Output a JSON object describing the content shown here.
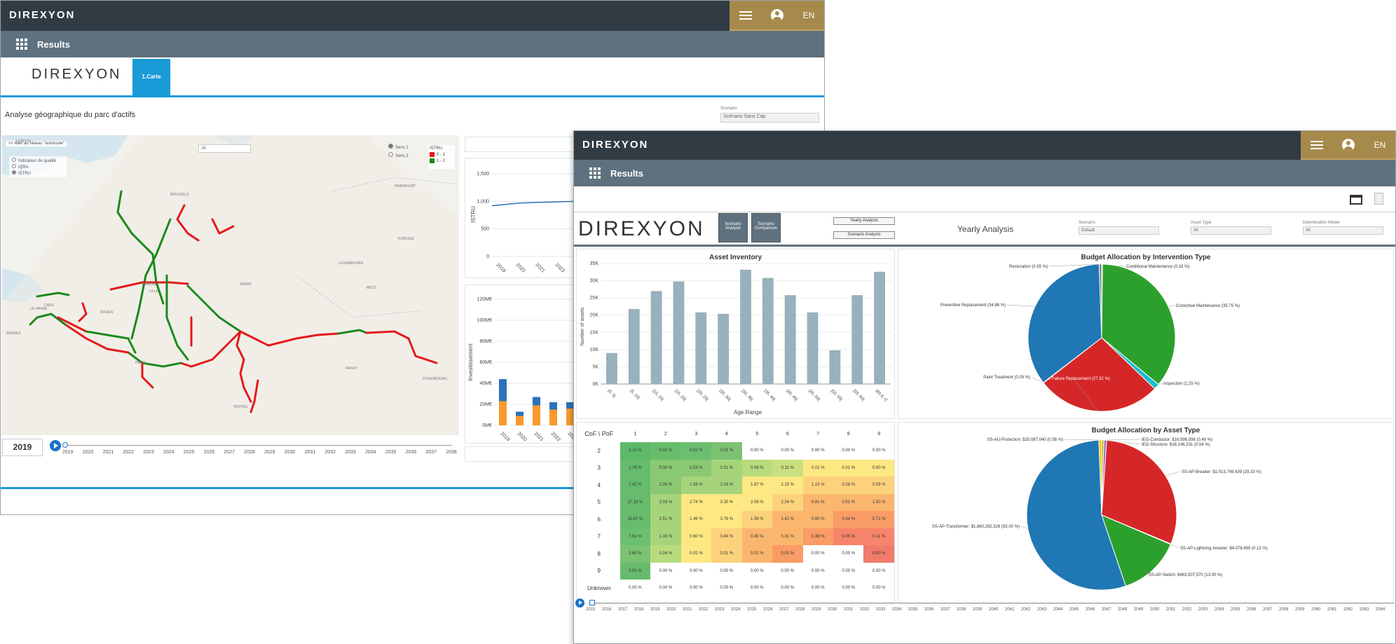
{
  "window1": {
    "brand": "DIREXYON",
    "lang": "EN",
    "results_title": "Results",
    "logo_text": "DIREXYON",
    "tab_carte": "1.Carte",
    "page_heading": "Analyse géographique du parc d'actifs",
    "scenario_label": "Scenario",
    "scenario_value": "Scénario Sans Cap",
    "map_back_link": "<< Aller au niveau \"Autoroute\"",
    "map_filter_value": "All",
    "indicator_options": [
      "Indicateur de qualité",
      "IQRA",
      "ISTRU"
    ],
    "sens_options": [
      "Sens 1",
      "Sens 2"
    ],
    "legend_title": "ISTRU",
    "legend_items": [
      {
        "label": "0 - 1",
        "color": "#e31a1c"
      },
      {
        "label": "1 - 2",
        "color": "#1a8a1a"
      }
    ],
    "cities": [
      "LONDON",
      "BRUSSELS",
      "LILLE",
      "AMIENS",
      "ROUEN",
      "PARIS",
      "REIMS",
      "METZ",
      "NANCY",
      "STRASBOURG",
      "LUXEMBOURG",
      "TROYES",
      "CAEN",
      "LE HAVRE",
      "RENNES",
      "KOBLENZ",
      "FRANKFURT"
    ],
    "year_value": "2019",
    "timeline_years": [
      "2019",
      "2020",
      "2021",
      "2022",
      "2023",
      "2024",
      "2025",
      "2026",
      "2027",
      "2028",
      "2029",
      "2030",
      "2031",
      "2032",
      "2033",
      "2034",
      "2035",
      "2036",
      "2037",
      "2038"
    ],
    "line_chart": {
      "ylabel": "ISTRU",
      "yticks": [
        "0",
        "500",
        "1,000",
        "1,500"
      ],
      "xticks": [
        "2019",
        "2020",
        "2021",
        "2023"
      ]
    },
    "invest_chart": {
      "ylabel": "Investissement",
      "yticks": [
        "0M€",
        "20M€",
        "40M€",
        "60M€",
        "80M€",
        "100M€",
        "120M€"
      ],
      "xticks": [
        "2019",
        "2020",
        "2021",
        "2022",
        "2023"
      ]
    }
  },
  "window2": {
    "brand": "DIREXYON",
    "lang": "EN",
    "results_title": "Results",
    "logo_text": "DIREXYON",
    "tabs": [
      "Scenario Analysis",
      "Scenario Comparison"
    ],
    "buttons": [
      "Yearly Analysis",
      "Scenario Analysis"
    ],
    "view_title": "Yearly Analysis",
    "filters": [
      {
        "label": "Scenario",
        "value": "Default"
      },
      {
        "label": "Asset Type",
        "value": "All"
      },
      {
        "label": "Deterioration Model",
        "value": "All"
      }
    ],
    "heatmap": {
      "corner": "CoF \\ PoF",
      "cols": [
        "1",
        "2",
        "3",
        "4",
        "5",
        "6",
        "7",
        "8",
        "9"
      ],
      "rows": [
        {
          "label": "2",
          "cells": [
            "0.11 %",
            "0.02 %",
            "0.02 %",
            "0.01 %",
            "0.00 %",
            "0.00 %",
            "0.00 %",
            "0.00 %",
            "0.00 %"
          ]
        },
        {
          "label": "3",
          "cells": [
            "1.78 %",
            "0.30 %",
            "0.53 %",
            "0.31 %",
            "0.09 %",
            "0.11 %",
            "0.01 %",
            "0.01 %",
            "0.00 %"
          ]
        },
        {
          "label": "4",
          "cells": [
            "7.42 %",
            "2.05 %",
            "1.59 %",
            "2.03 %",
            "1.87 %",
            "2.15 %",
            "1.15 %",
            "0.28 %",
            "0.59 %"
          ]
        },
        {
          "label": "5",
          "cells": [
            "17.15 %",
            "3.03 %",
            "2.74 %",
            "3.30 %",
            "2.08 %",
            "2.34 %",
            "0.81 %",
            "0.51 %",
            "1.50 %"
          ]
        },
        {
          "label": "6",
          "cells": [
            "16.67 %",
            "2.51 %",
            "1.46 %",
            "3.76 %",
            "1.59 %",
            "1.42 %",
            "0.80 %",
            "0.34 %",
            "0.71 %"
          ]
        },
        {
          "label": "7",
          "cells": [
            "7.61 %",
            "1.15 %",
            "0.60 %",
            "0.84 %",
            "0.45 %",
            "0.31 %",
            "0.38 %",
            "0.05 %",
            "0.11 %"
          ]
        },
        {
          "label": "8",
          "cells": [
            "3.60 %",
            "0.04 %",
            "0.01 %",
            "0.01 %",
            "0.01 %",
            "0.01 %",
            "0.00 %",
            "0.00 %",
            "0.00 %"
          ]
        },
        {
          "label": "9",
          "cells": [
            "0.01 %",
            "0.00 %",
            "0.00 %",
            "0.00 %",
            "0.00 %",
            "0.00 %",
            "0.00 %",
            "0.00 %",
            "0.00 %"
          ]
        },
        {
          "label": "Unknown",
          "cells": [
            "0.00 %",
            "0.00 %",
            "0.00 %",
            "0.00 %",
            "0.00 %",
            "0.00 %",
            "0.00 %",
            "0.00 %",
            "0.00 %"
          ]
        }
      ]
    },
    "timeline_years": [
      "2015",
      "2016",
      "2017",
      "2018",
      "2019",
      "2020",
      "2021",
      "2022",
      "2023",
      "2024",
      "2025",
      "2026",
      "2027",
      "2028",
      "2029",
      "2030",
      "2031",
      "2032",
      "2033",
      "2034",
      "2035",
      "2036",
      "2037",
      "2038",
      "2039",
      "2040",
      "2041",
      "2042",
      "2043",
      "2044",
      "2045",
      "2046",
      "2047",
      "2048",
      "2049",
      "2050",
      "2051",
      "2052",
      "2053",
      "2054",
      "2055",
      "2056",
      "2057",
      "2058",
      "2059",
      "2060",
      "2061",
      "2062",
      "2063",
      "2064"
    ]
  },
  "chart_data": [
    {
      "type": "bar",
      "title": "Asset Inventory",
      "xlabel": "Age Range",
      "ylabel": "Number of assets",
      "categories": [
        "[0, 5[",
        "[5, 10[",
        "[10, 15[",
        "[15, 20[",
        "[20, 25[",
        "[25, 30[",
        "[30, 35[",
        "[35, 40[",
        "[40, 45[",
        "[45, 50[",
        "[50, 55[",
        "[55, 60[",
        "[60 & +["
      ],
      "values": [
        9000,
        21800,
        27000,
        29800,
        20800,
        20400,
        33200,
        30800,
        25800,
        20800,
        9800,
        25800,
        32600
      ],
      "ylim": [
        0,
        35000
      ],
      "yticks": [
        "0K",
        "5K",
        "10K",
        "15K",
        "20K",
        "25K",
        "30K",
        "35K"
      ],
      "color": "#99b0bd"
    },
    {
      "type": "pie",
      "title": "Budget Allocation by Intervention Type",
      "slices": [
        {
          "label": "Conditional Maintenance (0.18 %)",
          "value": 0.18,
          "color": "#c9c9c9"
        },
        {
          "label": "Corrective Maintenance (35.75 %)",
          "value": 35.75,
          "color": "#2ca02c"
        },
        {
          "label": "Inspection (1.25 %)",
          "value": 1.25,
          "color": "#17becf"
        },
        {
          "label": "Major Failure Replacement (27.32 %)",
          "value": 27.32,
          "color": "#d62728"
        },
        {
          "label": "Paint Treatment (0.09 %)",
          "value": 0.09,
          "color": "#8c564b"
        },
        {
          "label": "Preventive Replacement (34.86 %)",
          "value": 34.86,
          "color": "#1f77b4"
        },
        {
          "label": "Restoration (0.55 %)",
          "value": 0.55,
          "color": "#7f7f7f"
        }
      ]
    },
    {
      "type": "pie",
      "title": "Budget Allocation by Asset Type",
      "slices": [
        {
          "label": "IEG-Conductor: $16,996,098 (0.49 %)",
          "value": 0.49,
          "color": "#bcbd22"
        },
        {
          "label": "IEG-Structure: $18,146,231 (0.54 %)",
          "value": 0.54,
          "color": "#9467bd"
        },
        {
          "label": "SS-AP-Breaker: $1,013,749,439 (29.33 %)",
          "value": 29.33,
          "color": "#d62728"
        },
        {
          "label": "SS-AP-Lightning Arrester: $4,078,489 (0.12 %)",
          "value": 0.12,
          "color": "#8c564b"
        },
        {
          "label": "SS-AP-Switch: $463,507,570 (13.00 %)",
          "value": 13.0,
          "color": "#2ca02c"
        },
        {
          "label": "SS-AP-Transformer: $1,860,292,326 (53.00 %)",
          "value": 53.0,
          "color": "#1f77b4"
        },
        {
          "label": "SS-AU-Protection: $20,087,040 (0.58 %)",
          "value": 0.58,
          "color": "#ffbf00"
        }
      ]
    },
    {
      "type": "line",
      "ylabel": "ISTRU",
      "x": [
        "2019",
        "2020",
        "2021",
        "2022",
        "2023",
        "2024"
      ],
      "values": [
        920,
        970,
        985,
        1000,
        1010,
        1020
      ],
      "ylim": [
        0,
        1500
      ]
    },
    {
      "type": "bar",
      "ylabel": "Investissement",
      "categories": [
        "2019",
        "2020",
        "2021",
        "2022",
        "2023"
      ],
      "series": [
        {
          "values": [
            23,
            9,
            19,
            15,
            16
          ],
          "color": "#f79a2e"
        },
        {
          "values": [
            21,
            4,
            8,
            7,
            6
          ],
          "color": "#2a73b8"
        }
      ],
      "ylim": [
        0,
        120
      ]
    }
  ]
}
